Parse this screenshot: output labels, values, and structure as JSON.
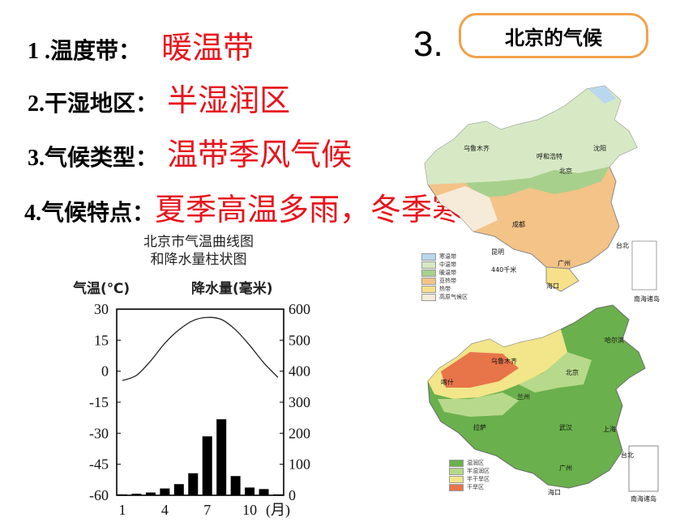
{
  "items": [
    {
      "num": "1 .",
      "label": "温度带：",
      "value": "暖温带"
    },
    {
      "num": "2.",
      "label": "干湿地区：",
      "value": "半湿润区"
    },
    {
      "num": "3.",
      "label": "气候类型：",
      "value": "温带季风气候"
    },
    {
      "num": "4.",
      "label": "气候特点：",
      "value": "夏季高温多雨，冬季寒冷干燥。"
    }
  ],
  "section": {
    "number": "3.",
    "title": "北京的气候"
  },
  "chart_data": {
    "type": "bar",
    "title": "北京市气温曲线图\n和降水量柱状图",
    "title_lines": [
      "北京市气温曲线图",
      "和降水量柱状图"
    ],
    "ylabel_left": "气温(℃)",
    "ylabel_right": "降水量(毫米)",
    "xunit": "(月)",
    "categories": [
      1,
      2,
      3,
      4,
      5,
      6,
      7,
      8,
      9,
      10,
      11,
      12
    ],
    "x_tick_labels": [
      "1",
      "4",
      "7",
      "10"
    ],
    "y_left_ticks": [
      "30",
      "15",
      "0",
      "-15",
      "-30",
      "-45",
      "-60"
    ],
    "y_right_ticks": [
      "600",
      "500",
      "400",
      "300",
      "200",
      "100",
      "0"
    ],
    "ylim_left": [
      -60,
      30
    ],
    "ylim_right": [
      0,
      600
    ],
    "series": [
      {
        "type": "line",
        "axis": "left",
        "values": [
          -4.5,
          -2,
          5,
          13.5,
          20,
          24.5,
          26,
          25,
          20,
          12.5,
          4,
          -3
        ]
      },
      {
        "type": "bar",
        "axis": "right",
        "values": [
          3,
          5,
          9,
          22,
          36,
          71,
          190,
          245,
          62,
          25,
          20,
          3
        ]
      }
    ]
  },
  "map1": {
    "legend": [
      "寒温带",
      "中温带",
      "暖温带",
      "亚热带",
      "热带",
      "高原气候区"
    ],
    "legend_colors": [
      "#b9d7ee",
      "#d6e9c4",
      "#a8d08d",
      "#f3c387",
      "#f7e08a",
      "#f6ead8"
    ],
    "scale": "440千米",
    "labels": [
      "呼和浩特",
      "乌鲁木齐",
      "北京",
      "沈阳",
      "成都",
      "广州",
      "台北",
      "昆明",
      "海口"
    ],
    "inset": "南海诸岛"
  },
  "map2": {
    "legend": [
      "湿润区",
      "半湿润区",
      "半干旱区",
      "干旱区"
    ],
    "legend_colors": [
      "#6ab04c",
      "#b7d98b",
      "#f2e58a",
      "#e8744a"
    ],
    "labels": [
      "北京",
      "乌鲁木齐",
      "哈尔滨",
      "喀什",
      "兰州",
      "拉萨",
      "武汉",
      "上海",
      "台北",
      "广州",
      "海口"
    ],
    "inset": "南海诸岛"
  }
}
